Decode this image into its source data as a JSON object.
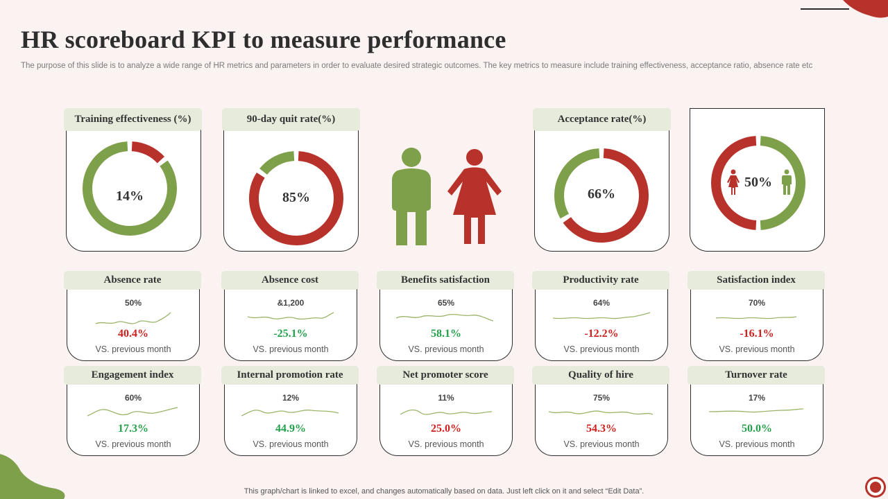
{
  "title": "HR scoreboard  KPI to measure performance",
  "subtitle": "The purpose of this slide is to analyze  a wide range of HR metrics and parameters in order to evaluate desired strategic outcomes. The key metrics to measure include training effectiveness, acceptance ratio, absence rate etc",
  "footnote": "This graph/chart is linked to excel,  and changes automatically based on data. Just left click on it and select “Edit Data”.",
  "colors": {
    "red": "#b8322c",
    "green": "#7fa04a",
    "header": "#e6ebdc"
  },
  "chart_data": [
    {
      "type": "pie",
      "title": "Training  effectiveness (%)",
      "value": 14,
      "label": "14%"
    },
    {
      "type": "pie",
      "title": "90-day  quit  rate(%)",
      "value": 85,
      "label": "85%"
    },
    {
      "type": "pie",
      "title": "Acceptance rate(%)",
      "value": 66,
      "label": "66%"
    },
    {
      "type": "pie",
      "title": "",
      "value": 50,
      "label": "50%",
      "series": [
        {
          "name": "female",
          "value": 50
        },
        {
          "name": "male",
          "value": 50
        }
      ]
    }
  ],
  "kpis": [
    {
      "name": "Absence rate",
      "value": "50%",
      "change": "40.4%",
      "dir": "neg",
      "vs": "VS. previous  month"
    },
    {
      "name": "Absence cost",
      "value": "&1,200",
      "change": "-25.1%",
      "dir": "pos",
      "vs": "VS. previous  month"
    },
    {
      "name": "Benefits satisfaction",
      "value": "65%",
      "change": "58.1%",
      "dir": "pos",
      "vs": "VS. previous  month"
    },
    {
      "name": "Productivity  rate",
      "value": "64%",
      "change": "-12.2%",
      "dir": "neg",
      "vs": "VS. previous  month"
    },
    {
      "name": "Satisfaction index",
      "value": "70%",
      "change": "-16.1%",
      "dir": "neg",
      "vs": "VS. previous  month"
    },
    {
      "name": "Engagement index",
      "value": "60%",
      "change": "17.3%",
      "dir": "pos",
      "vs": "VS. previous  month"
    },
    {
      "name": "Internal promotion  rate",
      "value": "12%",
      "change": "44.9%",
      "dir": "pos",
      "vs": "VS. previous  month"
    },
    {
      "name": "Net promoter  score",
      "value": "11%",
      "change": "25.0%",
      "dir": "neg",
      "vs": "VS. previous  month"
    },
    {
      "name": "Quality  of hire",
      "value": "75%",
      "change": "54.3%",
      "dir": "neg",
      "vs": "VS. previous  month"
    },
    {
      "name": "Turnover rate",
      "value": "17%",
      "change": "50.0%",
      "dir": "pos",
      "vs": "VS. previous  month"
    }
  ]
}
